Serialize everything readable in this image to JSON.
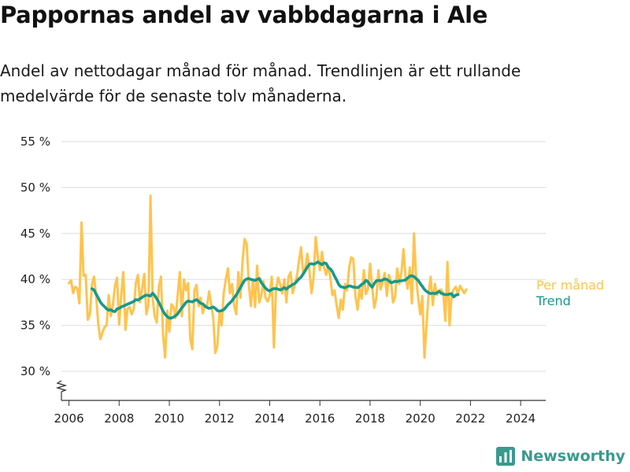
{
  "title": "Pappornas andel av vabbdagarna i Ale",
  "subtitle": "Andel av nettodagar månad för månad. Trendlinjen är ett rullande medelvärde för de senaste tolv månaderna.",
  "brand": "Newsworthy",
  "colors": {
    "monthly": "#ffc34d",
    "trend": "#16998a",
    "grid": "#dddddd",
    "axis": "#333333",
    "brand": "#3a9a8e"
  },
  "chart_data": {
    "type": "line",
    "title": "Pappornas andel av vabbdagarna i Ale",
    "xlabel": "",
    "ylabel": "",
    "xlim": [
      2005.7,
      2025.0
    ],
    "ylim": [
      30,
      55
    ],
    "yticks": [
      30,
      35,
      40,
      45,
      50,
      55
    ],
    "ytick_labels": [
      "30 %",
      "35 %",
      "40 %",
      "45 %",
      "50 %",
      "55 %"
    ],
    "xticks": [
      2006,
      2008,
      2010,
      2012,
      2014,
      2016,
      2018,
      2020,
      2022,
      2024
    ],
    "xtick_labels": [
      "2006",
      "2008",
      "2010",
      "2012",
      "2014",
      "2016",
      "2018",
      "2020",
      "2022",
      "2024"
    ],
    "grid": "horizontal",
    "axis_break": true,
    "x_start": 2006.0,
    "x_step": 0.08333,
    "series": [
      {
        "name": "Per månad",
        "values": [
          39.6,
          39.9,
          38.5,
          39.2,
          39.0,
          37.4,
          46.2,
          40.4,
          40.5,
          35.6,
          36.2,
          39.5,
          40.3,
          38.2,
          35.2,
          33.5,
          34.2,
          34.8,
          35.0,
          38.3,
          36.0,
          37.2,
          39.3,
          40.2,
          35.1,
          38.3,
          40.8,
          34.5,
          36.8,
          37.0,
          36.2,
          36.8,
          39.6,
          40.5,
          37.5,
          39.0,
          40.6,
          36.2,
          37.2,
          49.1,
          38.0,
          36.0,
          35.3,
          39.2,
          40.3,
          34.0,
          31.5,
          36.6,
          34.3,
          37.3,
          37.0,
          35.8,
          38.3,
          40.8,
          36.0,
          40.0,
          38.8,
          39.6,
          33.5,
          32.4,
          38.8,
          39.4,
          37.1,
          38.0,
          36.3,
          37.2,
          37.0,
          38.7,
          37.3,
          35.8,
          32.0,
          32.8,
          36.5,
          35.0,
          38.5,
          40.0,
          41.2,
          38.5,
          39.5,
          37.2,
          36.2,
          40.8,
          38.0,
          42.0,
          44.4,
          43.8,
          39.5,
          37.1,
          40.0,
          37.0,
          41.5,
          37.5,
          38.3,
          39.8,
          38.0,
          37.6,
          38.2,
          40.3,
          32.6,
          38.8,
          40.2,
          39.5,
          38.5,
          40.0,
          37.5,
          40.3,
          40.8,
          38.5,
          39.5,
          40.3,
          42.0,
          43.5,
          40.5,
          41.2,
          42.8,
          41.0,
          38.5,
          40.2,
          44.6,
          42.5,
          41.0,
          43.0,
          41.3,
          40.5,
          41.5,
          40.2,
          38.3,
          38.8,
          37.2,
          35.8,
          37.8,
          36.7,
          39.5,
          38.8,
          41.3,
          42.4,
          42.2,
          38.2,
          36.7,
          39.0,
          37.9,
          41.0,
          38.4,
          39.0,
          41.7,
          39.2,
          36.9,
          38.0,
          41.0,
          38.9,
          39.7,
          40.7,
          38.2,
          40.5,
          39.8,
          37.5,
          38.1,
          41.2,
          39.5,
          40.8,
          43.3,
          40.1,
          39.0,
          41.3,
          37.4,
          45.0,
          40.3,
          38.0,
          36.2,
          38.2,
          31.5,
          35.0,
          38.5,
          40.3,
          37.2,
          39.5,
          38.3,
          38.8,
          38.9,
          38.5,
          35.5,
          41.9,
          35.0,
          38.3,
          38.9,
          39.2,
          38.4,
          39.3,
          38.9,
          38.5,
          38.9
        ]
      },
      {
        "name": "Trend",
        "values": [
          null,
          null,
          null,
          null,
          null,
          null,
          null,
          null,
          null,
          null,
          null,
          38.98,
          38.85,
          38.4,
          38.0,
          37.55,
          37.25,
          37.05,
          36.8,
          36.65,
          36.7,
          36.55,
          36.5,
          36.8,
          36.85,
          37.0,
          37.1,
          37.2,
          37.3,
          37.4,
          37.5,
          37.6,
          37.8,
          37.75,
          37.9,
          38.05,
          38.2,
          38.3,
          38.25,
          38.2,
          38.5,
          38.25,
          37.9,
          37.5,
          37.05,
          36.55,
          36.2,
          35.95,
          35.8,
          35.8,
          35.9,
          36.05,
          36.25,
          36.6,
          36.9,
          37.2,
          37.5,
          37.65,
          37.6,
          37.55,
          37.7,
          37.8,
          37.6,
          37.4,
          37.35,
          37.1,
          36.95,
          36.85,
          36.9,
          37.0,
          36.85,
          36.6,
          36.55,
          36.6,
          36.7,
          36.95,
          37.25,
          37.45,
          37.7,
          38.0,
          38.3,
          38.7,
          39.1,
          39.55,
          39.9,
          40.05,
          40.1,
          40.0,
          39.95,
          39.9,
          40.0,
          40.1,
          39.65,
          39.35,
          39.05,
          38.85,
          38.75,
          38.9,
          39.0,
          39.0,
          38.95,
          38.85,
          38.95,
          39.1,
          38.95,
          39.15,
          39.3,
          39.45,
          39.55,
          39.8,
          40.05,
          40.25,
          40.6,
          40.95,
          41.35,
          41.65,
          41.7,
          41.65,
          41.75,
          41.9,
          41.75,
          41.6,
          41.8,
          41.75,
          41.3,
          41.15,
          40.85,
          40.35,
          39.95,
          39.45,
          39.2,
          39.15,
          39.1,
          39.2,
          39.3,
          39.25,
          39.15,
          39.15,
          39.1,
          39.25,
          39.45,
          39.6,
          39.9,
          39.75,
          39.4,
          39.15,
          39.55,
          39.85,
          39.9,
          39.85,
          39.95,
          40.05,
          40.0,
          39.85,
          39.65,
          39.7,
          39.8,
          39.75,
          39.85,
          39.85,
          39.9,
          39.95,
          40.15,
          40.35,
          40.4,
          40.3,
          40.1,
          39.9,
          39.55,
          39.25,
          38.9,
          38.7,
          38.55,
          38.45,
          38.5,
          38.45,
          38.55,
          38.7,
          38.5,
          38.4,
          38.35,
          38.35,
          38.4,
          38.45,
          38.1,
          38.3,
          38.35
        ]
      }
    ]
  }
}
